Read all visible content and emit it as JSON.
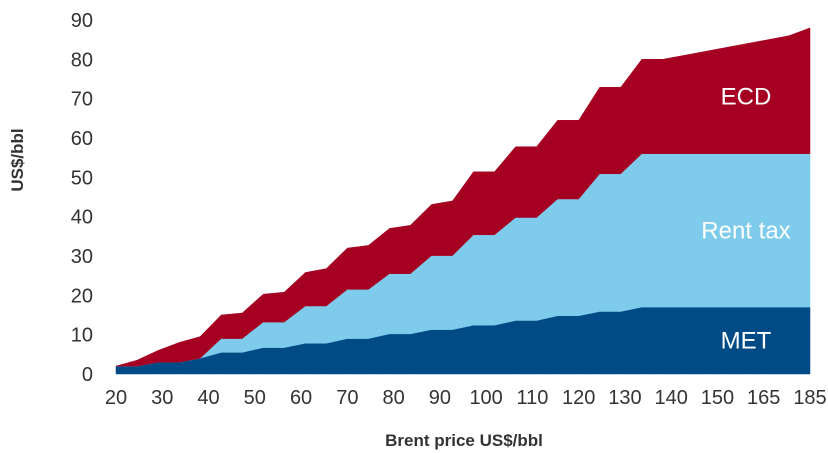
{
  "chart_data": {
    "type": "area",
    "stacked": true,
    "title": "",
    "xlabel": "Brent price US$/bbl",
    "ylabel": "US$/bbl",
    "ylim": [
      0,
      90
    ],
    "yticks": [
      0,
      10,
      20,
      30,
      40,
      50,
      60,
      70,
      80,
      90
    ],
    "grid": false,
    "legend": "inline labels on areas",
    "categories": [
      "20",
      "25",
      "30",
      "35",
      "40",
      "45",
      "50",
      "55",
      "60",
      "65",
      "70",
      "75",
      "80",
      "85",
      "90",
      "95",
      "100",
      "105",
      "110",
      "115",
      "120",
      "125",
      "130",
      "135",
      "140",
      "145",
      "150",
      "155",
      "160",
      "165",
      "170",
      "175",
      "180",
      "185"
    ],
    "tick_labels": [
      "20",
      "30",
      "40",
      "50",
      "60",
      "70",
      "80",
      "90",
      "100",
      "110",
      "120",
      "130",
      "140",
      "150",
      "165",
      "185"
    ],
    "series": [
      {
        "name": "MET",
        "color": "#004a86",
        "values": [
          2,
          2,
          3,
          3,
          4,
          5.5,
          5.5,
          6.7,
          6.7,
          7.8,
          7.8,
          9,
          9,
          10.2,
          10.2,
          11.3,
          11.3,
          12.4,
          12.4,
          13.6,
          13.6,
          14.8,
          14.8,
          15.9,
          15.9,
          17,
          17,
          17,
          17,
          17,
          17,
          17,
          17,
          17
        ]
      },
      {
        "name": "Rent tax",
        "color": "#7ecbeb",
        "values": [
          0,
          0,
          0,
          0,
          0,
          3.5,
          3.5,
          6.5,
          6.5,
          9.5,
          9.5,
          12.5,
          12.5,
          15.3,
          15.3,
          18.8,
          18.8,
          23,
          23,
          26.2,
          26.2,
          29.7,
          29.7,
          35,
          35,
          39,
          39,
          39,
          39,
          39,
          39,
          39,
          39,
          39
        ]
      },
      {
        "name": "ECD",
        "color": "#a50021",
        "values": [
          0,
          1.5,
          3,
          5,
          5.5,
          6,
          6.5,
          7.1,
          7.6,
          8.5,
          9.5,
          10.5,
          11.2,
          11.5,
          12.3,
          13,
          13.9,
          16,
          16,
          18,
          18,
          20,
          20,
          22,
          22,
          24,
          24,
          25,
          26,
          27,
          28,
          29,
          30,
          32
        ]
      }
    ]
  }
}
